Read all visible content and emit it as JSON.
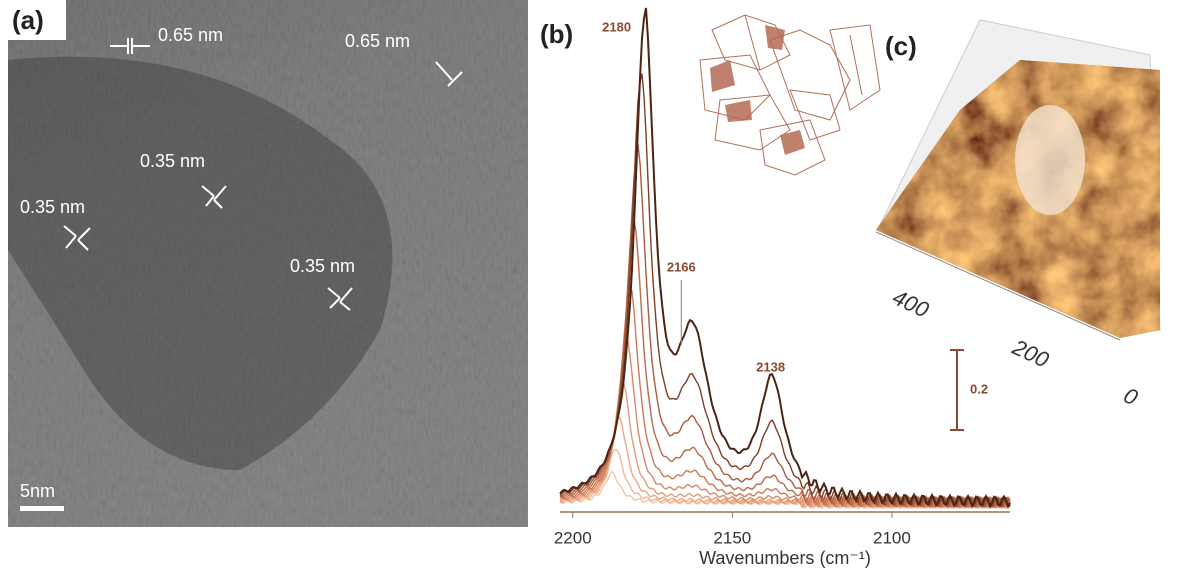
{
  "panel_a": {
    "label": "(a)",
    "annotations": [
      "0.65 nm",
      "0.65 nm",
      "0.35 nm",
      "0.35 nm",
      "0.35 nm"
    ],
    "scale_bar": "5nm"
  },
  "panel_b": {
    "label": "(b)",
    "xlabel": "Wavenumbers (cm⁻¹)",
    "xlim": [
      2204,
      2063
    ],
    "xticks": [
      2200,
      2150,
      2100
    ],
    "peak_labels": [
      2180,
      2166,
      2138
    ],
    "scale_bar": 0.2
  },
  "panel_c": {
    "label": "(c)",
    "axis_ticks": [
      400,
      200,
      0
    ]
  }
}
